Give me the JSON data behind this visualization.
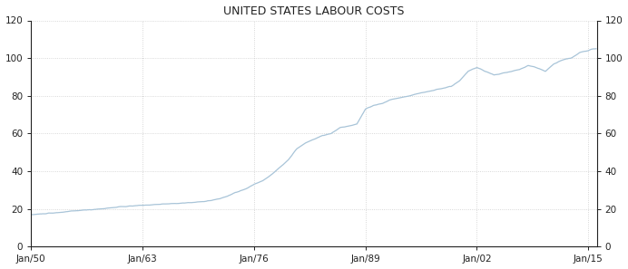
{
  "title": "UNITED STATES LABOUR COSTS",
  "title_fontsize": 9,
  "title_color": "#222222",
  "line_color": "#a8c4d8",
  "background_color": "#ffffff",
  "grid_color": "#cccccc",
  "tick_label_color": "#222222",
  "spine_color": "#222222",
  "ylim": [
    0,
    120
  ],
  "yticks": [
    0,
    20,
    40,
    60,
    80,
    100,
    120
  ],
  "x_start_year": 1950,
  "x_end_year": 2016,
  "xtick_years": [
    1950,
    1963,
    1976,
    1989,
    2002,
    2015
  ],
  "xtick_labels": [
    "Jan/50",
    "Jan/63",
    "Jan/76",
    "Jan/89",
    "Jan/02",
    "Jan/15"
  ],
  "anchors": [
    [
      1950,
      17
    ],
    [
      1953,
      18
    ],
    [
      1955,
      19
    ],
    [
      1958,
      20
    ],
    [
      1960,
      21
    ],
    [
      1963,
      22
    ],
    [
      1965,
      22.5
    ],
    [
      1967,
      23
    ],
    [
      1969,
      23.5
    ],
    [
      1971,
      24.5
    ],
    [
      1972,
      25.5
    ],
    [
      1973,
      27
    ],
    [
      1974,
      29
    ],
    [
      1975,
      30.5
    ],
    [
      1976,
      33
    ],
    [
      1977,
      35
    ],
    [
      1978,
      38
    ],
    [
      1979,
      42
    ],
    [
      1980,
      46
    ],
    [
      1981,
      52
    ],
    [
      1982,
      55
    ],
    [
      1983,
      57
    ],
    [
      1984,
      59
    ],
    [
      1985,
      60
    ],
    [
      1986,
      63
    ],
    [
      1987,
      64
    ],
    [
      1988,
      65
    ],
    [
      1989,
      73
    ],
    [
      1990,
      75
    ],
    [
      1991,
      76
    ],
    [
      1992,
      78
    ],
    [
      1993,
      79
    ],
    [
      1994,
      80
    ],
    [
      1995,
      81
    ],
    [
      1996,
      82
    ],
    [
      1997,
      83
    ],
    [
      1998,
      84
    ],
    [
      1999,
      85
    ],
    [
      2000,
      88
    ],
    [
      2001,
      93
    ],
    [
      2002,
      95
    ],
    [
      2003,
      93
    ],
    [
      2004,
      91
    ],
    [
      2005,
      92
    ],
    [
      2006,
      93
    ],
    [
      2007,
      94
    ],
    [
      2008,
      96
    ],
    [
      2009,
      95
    ],
    [
      2010,
      93
    ],
    [
      2011,
      97
    ],
    [
      2012,
      99
    ],
    [
      2013,
      100
    ],
    [
      2014,
      103
    ],
    [
      2015,
      104
    ],
    [
      2015.5,
      105
    ]
  ]
}
